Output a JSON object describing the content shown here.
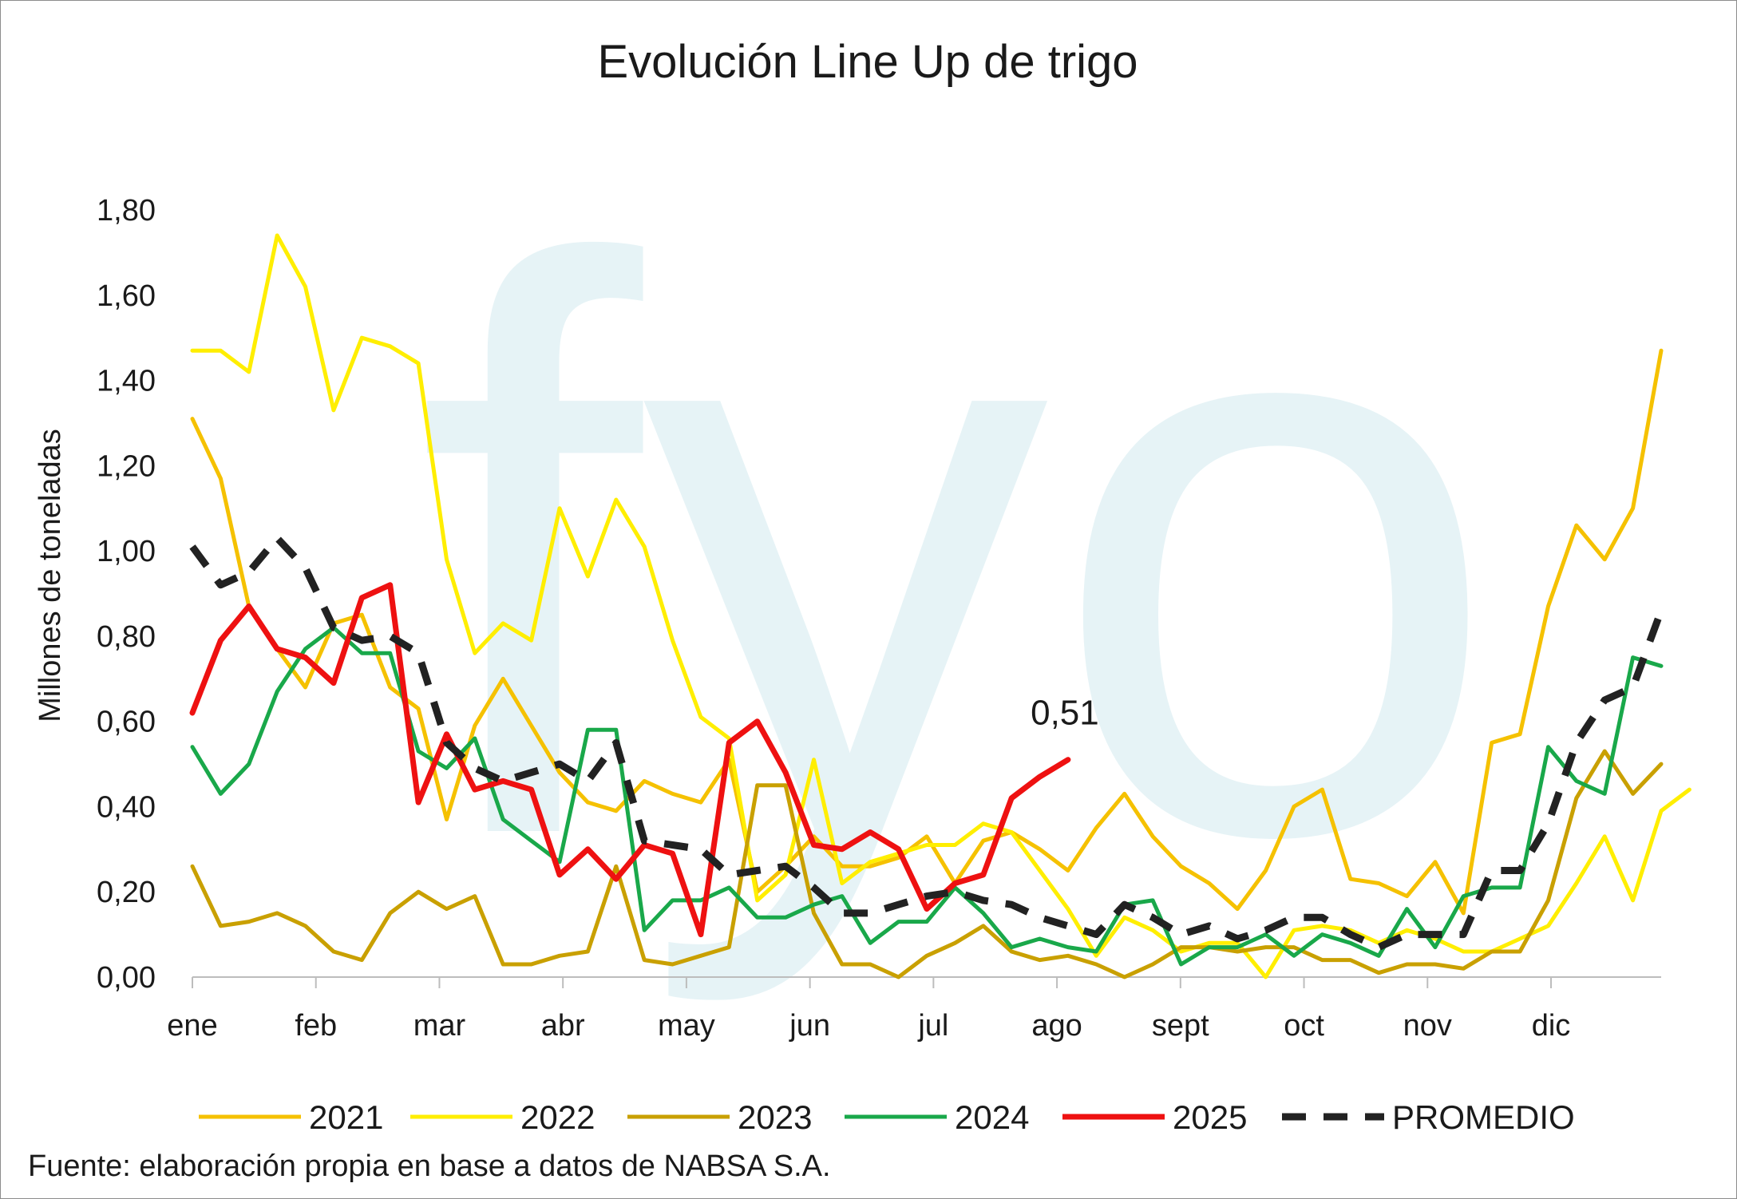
{
  "chart_data": {
    "type": "line",
    "title": "Evolución Line Up de trigo",
    "xlabel": "",
    "ylabel": "Millones de toneladas",
    "ylim": [
      0,
      1.8
    ],
    "yticks": [
      "0,00",
      "0,20",
      "0,40",
      "0,60",
      "0,80",
      "1,00",
      "1,20",
      "1,40",
      "1,60",
      "1,80"
    ],
    "months": [
      "ene",
      "feb",
      "mar",
      "abr",
      "may",
      "jun",
      "jul",
      "ago",
      "sept",
      "oct",
      "nov",
      "dic"
    ],
    "legend_position": "bottom",
    "source": "Fuente: elaboración propia en base a datos de NABSA S.A.",
    "watermark": "fyo",
    "annotation": {
      "text": "0,51",
      "series": "2025"
    },
    "series": [
      {
        "name": "2021",
        "color": "#f5c100",
        "width": 5,
        "dash": false,
        "values": [
          1.31,
          1.17,
          0.87,
          0.77,
          0.68,
          0.83,
          0.85,
          0.68,
          0.63,
          0.37,
          0.59,
          0.7,
          0.59,
          0.48,
          0.41,
          0.39,
          0.46,
          0.43,
          0.41,
          0.51,
          0.2,
          0.26,
          0.33,
          0.26,
          0.26,
          0.28,
          0.33,
          0.22,
          0.32,
          0.34,
          0.3,
          0.25,
          0.35,
          0.43,
          0.33,
          0.26,
          0.22,
          0.16,
          0.25,
          0.4,
          0.44,
          0.23,
          0.22,
          0.19,
          0.27,
          0.15,
          0.55,
          0.57,
          0.87,
          1.06,
          0.98,
          1.1,
          1.47
        ]
      },
      {
        "name": "2022",
        "color": "#ffee00",
        "width": 5,
        "dash": false,
        "values": [
          1.47,
          1.47,
          1.42,
          1.74,
          1.62,
          1.33,
          1.5,
          1.48,
          1.44,
          0.98,
          0.76,
          0.83,
          0.79,
          1.1,
          0.94,
          1.12,
          1.01,
          0.79,
          0.61,
          0.56,
          0.18,
          0.24,
          0.51,
          0.22,
          0.27,
          0.29,
          0.31,
          0.31,
          0.36,
          0.34,
          0.25,
          0.16,
          0.05,
          0.14,
          0.11,
          0.06,
          0.08,
          0.08,
          0.0,
          0.11,
          0.12,
          0.11,
          0.08,
          0.11,
          0.09,
          0.06,
          0.06,
          0.09,
          0.12,
          0.22,
          0.33,
          0.18,
          0.39,
          0.44
        ]
      },
      {
        "name": "2023",
        "color": "#c9a000",
        "width": 5,
        "dash": false,
        "values": [
          0.26,
          0.12,
          0.13,
          0.15,
          0.12,
          0.06,
          0.04,
          0.15,
          0.2,
          0.16,
          0.19,
          0.03,
          0.03,
          0.05,
          0.06,
          0.26,
          0.04,
          0.03,
          0.05,
          0.07,
          0.45,
          0.45,
          0.15,
          0.03,
          0.03,
          0.0,
          0.05,
          0.08,
          0.12,
          0.06,
          0.04,
          0.05,
          0.03,
          0.0,
          0.03,
          0.07,
          0.07,
          0.06,
          0.07,
          0.07,
          0.04,
          0.04,
          0.01,
          0.03,
          0.03,
          0.02,
          0.06,
          0.06,
          0.18,
          0.42,
          0.53,
          0.43,
          0.5
        ]
      },
      {
        "name": "2024",
        "color": "#19a84a",
        "width": 5,
        "dash": false,
        "values": [
          0.54,
          0.43,
          0.5,
          0.67,
          0.77,
          0.82,
          0.76,
          0.76,
          0.53,
          0.49,
          0.56,
          0.37,
          0.32,
          0.27,
          0.58,
          0.58,
          0.11,
          0.18,
          0.18,
          0.21,
          0.14,
          0.14,
          0.17,
          0.19,
          0.08,
          0.13,
          0.13,
          0.21,
          0.15,
          0.07,
          0.09,
          0.07,
          0.06,
          0.17,
          0.18,
          0.03,
          0.07,
          0.07,
          0.1,
          0.05,
          0.1,
          0.08,
          0.05,
          0.16,
          0.07,
          0.19,
          0.21,
          0.21,
          0.54,
          0.46,
          0.43,
          0.75,
          0.73
        ]
      },
      {
        "name": "2025",
        "color": "#ee1111",
        "width": 7,
        "dash": false,
        "values": [
          0.62,
          0.79,
          0.87,
          0.77,
          0.75,
          0.69,
          0.89,
          0.92,
          0.41,
          0.57,
          0.44,
          0.46,
          0.44,
          0.24,
          0.3,
          0.23,
          0.31,
          0.29,
          0.1,
          0.55,
          0.6,
          0.48,
          0.31,
          0.3,
          0.34,
          0.3,
          0.16,
          0.22,
          0.24,
          0.42,
          0.47,
          0.51
        ]
      },
      {
        "name": "PROMEDIO",
        "color": "#222222",
        "width": 9,
        "dash": true,
        "values": [
          1.01,
          0.92,
          0.95,
          1.03,
          0.96,
          0.82,
          0.79,
          0.8,
          0.76,
          0.55,
          0.49,
          0.46,
          0.48,
          0.5,
          0.46,
          0.55,
          0.32,
          0.31,
          0.3,
          0.24,
          0.25,
          0.26,
          0.21,
          0.15,
          0.15,
          0.17,
          0.19,
          0.2,
          0.18,
          0.17,
          0.14,
          0.12,
          0.1,
          0.17,
          0.14,
          0.1,
          0.12,
          0.09,
          0.11,
          0.14,
          0.14,
          0.1,
          0.07,
          0.1,
          0.1,
          0.1,
          0.25,
          0.25,
          0.36,
          0.55,
          0.65,
          0.68,
          0.86
        ]
      }
    ]
  }
}
